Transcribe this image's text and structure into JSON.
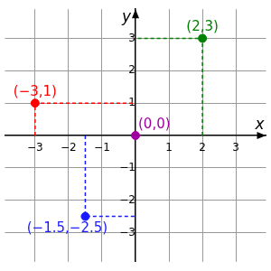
{
  "chart_data": {
    "type": "scatter",
    "x_label": "x",
    "y_label": "y",
    "x": [
      2,
      -3,
      -1.5,
      0
    ],
    "values": [
      3,
      1,
      -2.5,
      0
    ],
    "colors": [
      "#008000",
      "#ff0000",
      "#1a1aff",
      "#a000a0"
    ],
    "annotations": [
      "(2,3)",
      "(−3,1)",
      "(−1.5,−2.5)",
      "(0,0)"
    ],
    "line_style": "dashed",
    "xlim": [
      -3.9,
      3.9
    ],
    "ylim": [
      -3.9,
      3.9
    ],
    "xticks": [
      {
        "value": -3,
        "label": "−3"
      },
      {
        "value": -2,
        "label": "−2"
      },
      {
        "value": -1,
        "label": "−1"
      },
      1,
      2,
      3
    ],
    "yticks": [
      {
        "value": -3,
        "label": "−3"
      },
      {
        "value": -2,
        "label": "−2"
      },
      {
        "value": -1,
        "label": "−1"
      },
      1,
      2,
      3
    ],
    "grid": true
  }
}
